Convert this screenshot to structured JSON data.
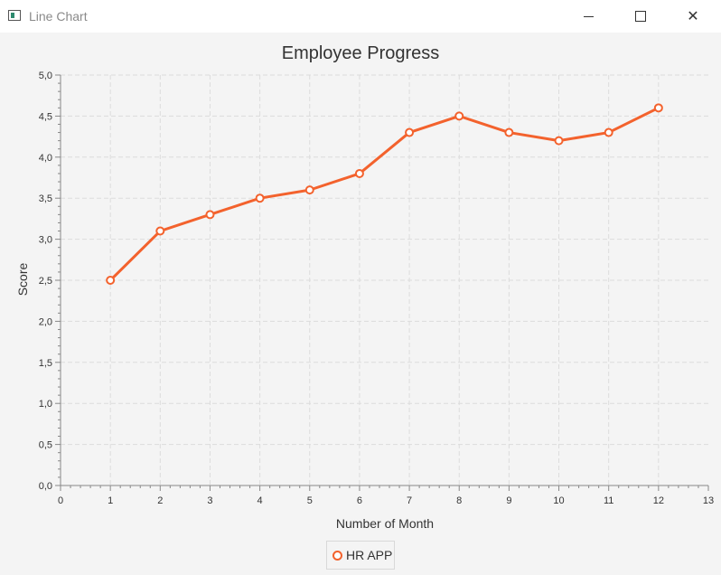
{
  "window": {
    "title": "Line Chart"
  },
  "colors": {
    "series": "#f3622d",
    "grid": "#dcdcdc",
    "background": "#f4f4f4"
  },
  "chart_data": {
    "type": "line",
    "title": "Employee Progress",
    "xlabel": "Number of Month",
    "ylabel": "Score",
    "xlim": [
      0,
      13
    ],
    "ylim": [
      0,
      5
    ],
    "x_ticks": [
      "0",
      "1",
      "2",
      "3",
      "4",
      "5",
      "6",
      "7",
      "8",
      "9",
      "10",
      "11",
      "12",
      "13"
    ],
    "y_ticks": [
      "0,0",
      "0,5",
      "1,0",
      "1,5",
      "2,0",
      "2,5",
      "3,0",
      "3,5",
      "4,0",
      "4,5",
      "5,0"
    ],
    "grid": true,
    "legend_position": "bottom",
    "series": [
      {
        "name": "HR APP",
        "x": [
          1,
          2,
          3,
          4,
          5,
          6,
          7,
          8,
          9,
          10,
          11,
          12
        ],
        "values": [
          2.5,
          3.1,
          3.3,
          3.5,
          3.6,
          3.8,
          4.3,
          4.5,
          4.3,
          4.2,
          4.3,
          4.6
        ]
      }
    ]
  }
}
